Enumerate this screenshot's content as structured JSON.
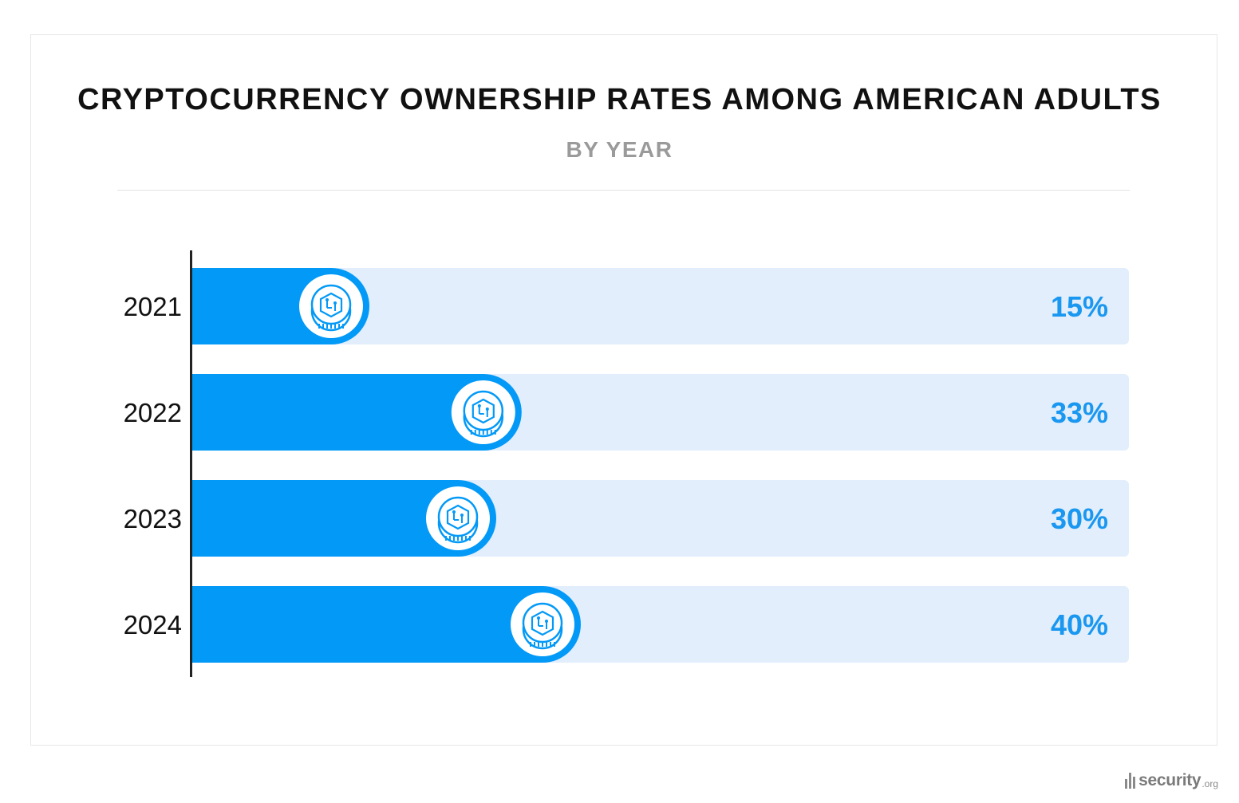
{
  "chart_data": {
    "type": "bar",
    "orientation": "horizontal",
    "title": "CRYPTOCURRENCY OWNERSHIP RATES AMONG AMERICAN ADULTS",
    "subtitle": "BY YEAR",
    "categories": [
      "2021",
      "2022",
      "2023",
      "2024"
    ],
    "values": [
      15,
      33,
      30,
      40
    ],
    "value_labels": [
      "15%",
      "33%",
      "30%",
      "40%"
    ],
    "unit": "%",
    "xlim": [
      0,
      100
    ],
    "grid": false,
    "colors": {
      "bar": "#0399f7",
      "track": "#e2eefb",
      "label": "#1a97f0",
      "axis": "#222222"
    }
  },
  "footer": {
    "logo_word": "security",
    "logo_tld": ".org"
  },
  "icons": {
    "coin": "crypto-coin-icon"
  }
}
